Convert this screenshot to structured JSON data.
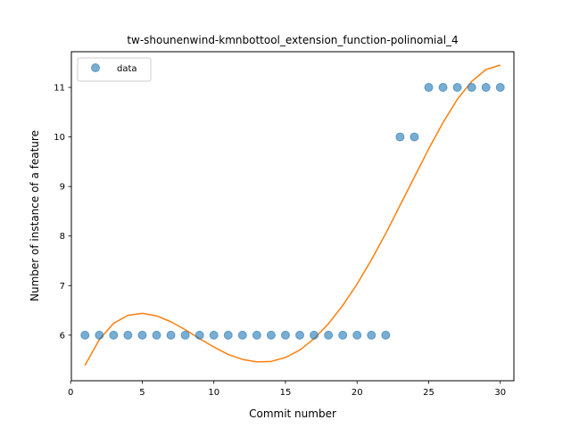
{
  "chart_data": {
    "type": "scatter",
    "title": "tw-shounenwind-kmnbottool_extension_function-polinomial_4",
    "xlabel": "Commit number",
    "ylabel": "Number of instance of a feature",
    "xlim": [
      0.05,
      30.95
    ],
    "ylim": [
      5.08,
      11.72
    ],
    "xticks": [
      0,
      5,
      10,
      15,
      20,
      25,
      30
    ],
    "yticks": [
      6,
      7,
      8,
      9,
      10,
      11
    ],
    "grid": false,
    "legend": {
      "position": "top-left",
      "entries": [
        "data"
      ]
    },
    "series": [
      {
        "name": "data",
        "kind": "scatter",
        "color": "#1f77b4",
        "x": [
          1,
          2,
          3,
          4,
          5,
          6,
          7,
          8,
          9,
          10,
          11,
          12,
          13,
          14,
          15,
          16,
          17,
          18,
          19,
          20,
          21,
          22,
          23,
          24,
          25,
          26,
          27,
          28,
          29,
          30
        ],
        "y": [
          6,
          6,
          6,
          6,
          6,
          6,
          6,
          6,
          6,
          6,
          6,
          6,
          6,
          6,
          6,
          6,
          6,
          6,
          6,
          6,
          6,
          6,
          10,
          10,
          11,
          11,
          11,
          11,
          11,
          11
        ]
      },
      {
        "kind": "line",
        "color": "#ff7f0e",
        "x": [
          1,
          2,
          3,
          4,
          5,
          6,
          7,
          8,
          9,
          10,
          11,
          12,
          13,
          14,
          15,
          16,
          17,
          18,
          19,
          20,
          21,
          22,
          23,
          24,
          25,
          26,
          27,
          28,
          29,
          30
        ],
        "y": [
          5.39,
          5.91,
          6.24,
          6.4,
          6.44,
          6.39,
          6.27,
          6.11,
          5.93,
          5.76,
          5.61,
          5.51,
          5.46,
          5.47,
          5.55,
          5.7,
          5.93,
          6.23,
          6.6,
          7.03,
          7.52,
          8.05,
          8.62,
          9.19,
          9.76,
          10.29,
          10.76,
          11.12,
          11.36,
          11.45
        ]
      }
    ]
  }
}
